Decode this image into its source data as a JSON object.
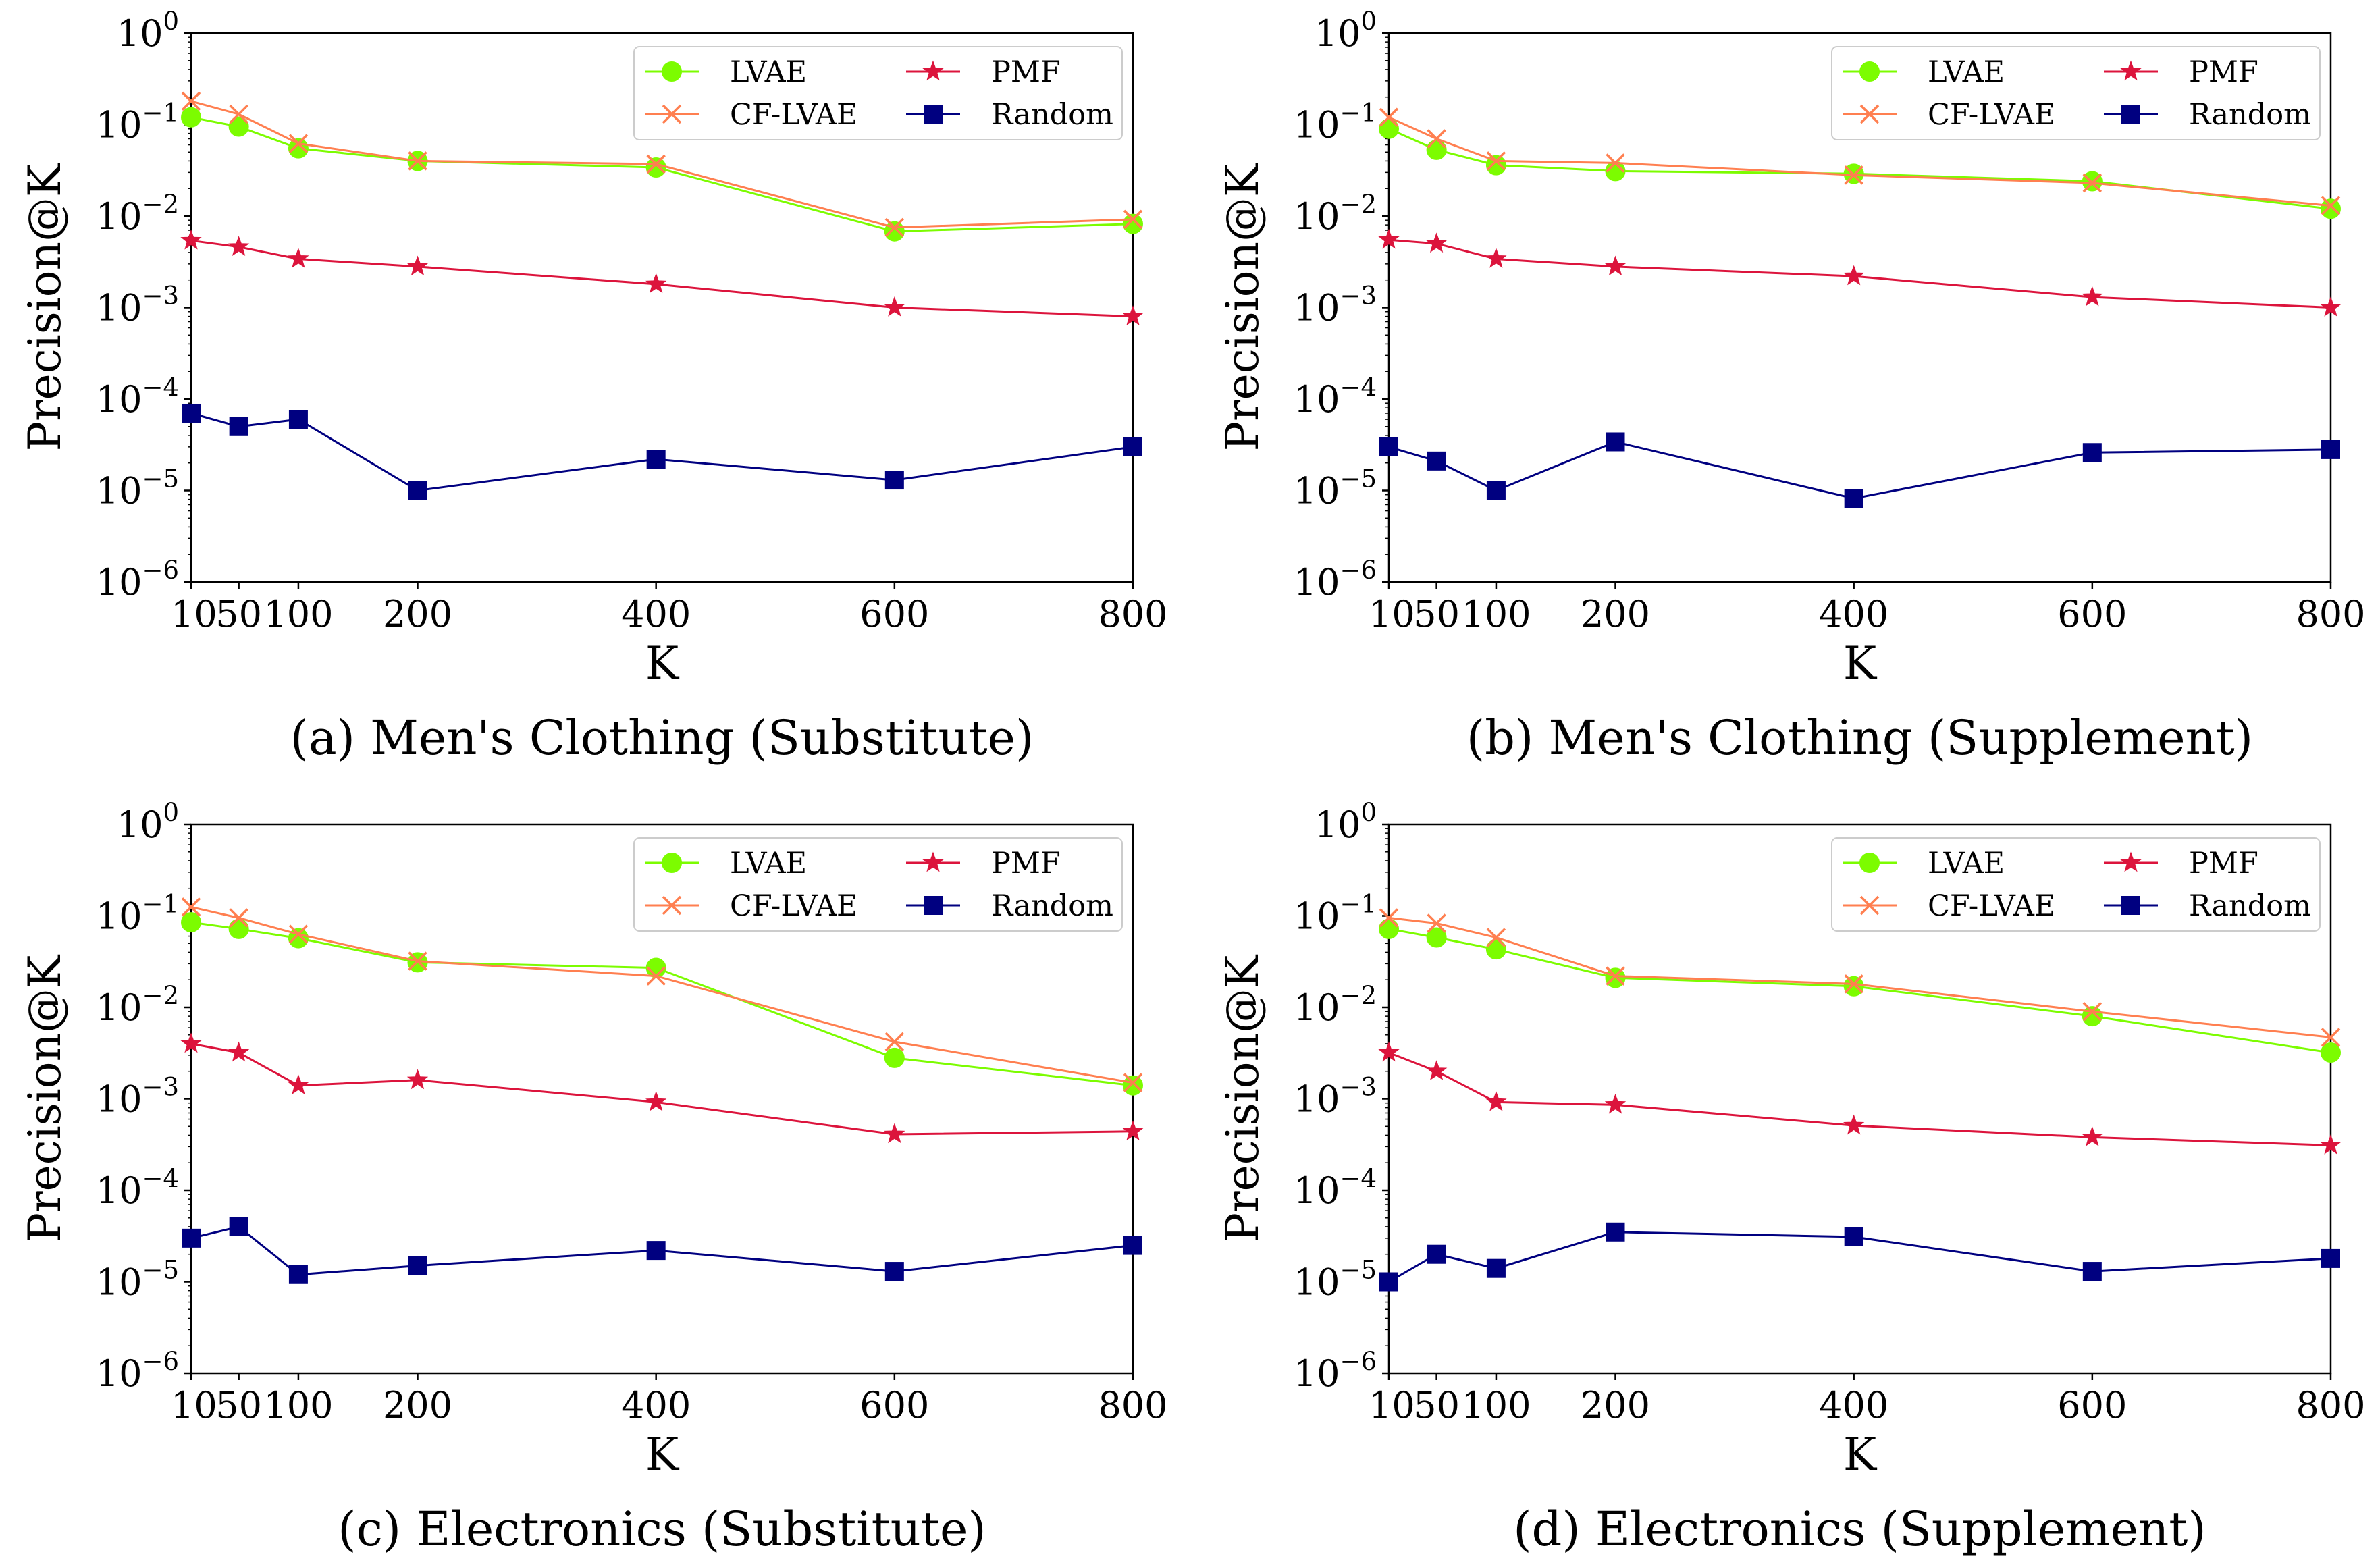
{
  "figure": {
    "colors": {
      "LVAE": "#7cfc00",
      "CF-LVAE": "#ff7f50",
      "PMF": "#dc143c",
      "Random": "#000080"
    },
    "legend_placement": "top-right",
    "y_scale": "log",
    "ylim": [
      1e-06,
      1
    ],
    "xlim": [
      10,
      800
    ],
    "x_ticks": [
      10,
      50,
      100,
      200,
      400,
      600,
      800
    ],
    "y_tick_labels": [
      {
        "base": "10",
        "exp": "0"
      },
      {
        "base": "10",
        "exp": "−1"
      },
      {
        "base": "10",
        "exp": "−2"
      },
      {
        "base": "10",
        "exp": "−3"
      },
      {
        "base": "10",
        "exp": "−4"
      },
      {
        "base": "10",
        "exp": "−5"
      },
      {
        "base": "10",
        "exp": "−6"
      }
    ],
    "markers": {
      "LVAE": "circle",
      "CF-LVAE": "x",
      "PMF": "star",
      "Random": "square"
    }
  },
  "chart_data": [
    {
      "type": "line",
      "caption": "(a) Men's Clothing (Substitute)",
      "xlabel": "K",
      "ylabel": "Precision@K",
      "x": [
        10,
        50,
        100,
        200,
        400,
        600,
        800
      ],
      "series": [
        {
          "name": "LVAE",
          "values": [
            0.12,
            0.095,
            0.055,
            0.04,
            0.034,
            0.0068,
            0.0082
          ]
        },
        {
          "name": "CF-LVAE",
          "values": [
            0.18,
            0.13,
            0.062,
            0.04,
            0.037,
            0.0075,
            0.0092
          ]
        },
        {
          "name": "PMF",
          "values": [
            0.0054,
            0.0046,
            0.0034,
            0.0028,
            0.0018,
            0.001,
            0.0008
          ]
        },
        {
          "name": "Random",
          "values": [
            7e-05,
            5e-05,
            6e-05,
            1e-05,
            2.2e-05,
            1.3e-05,
            3e-05
          ]
        }
      ]
    },
    {
      "type": "line",
      "caption": "(b) Men's Clothing (Supplement)",
      "xlabel": "K",
      "ylabel": "Precision@K",
      "x": [
        10,
        50,
        100,
        200,
        400,
        600,
        800
      ],
      "series": [
        {
          "name": "LVAE",
          "values": [
            0.09,
            0.053,
            0.036,
            0.031,
            0.029,
            0.024,
            0.012
          ]
        },
        {
          "name": "CF-LVAE",
          "values": [
            0.12,
            0.07,
            0.04,
            0.038,
            0.028,
            0.023,
            0.013
          ]
        },
        {
          "name": "PMF",
          "values": [
            0.0055,
            0.005,
            0.0034,
            0.0028,
            0.0022,
            0.0013,
            0.001
          ]
        },
        {
          "name": "Random",
          "values": [
            3e-05,
            2.1e-05,
            1e-05,
            3.4e-05,
            8.2e-06,
            2.6e-05,
            2.8e-05
          ]
        }
      ]
    },
    {
      "type": "line",
      "caption": "(c) Electronics (Substitute)",
      "xlabel": "K",
      "ylabel": "Precision@K",
      "x": [
        10,
        50,
        100,
        200,
        400,
        600,
        800
      ],
      "series": [
        {
          "name": "LVAE",
          "values": [
            0.085,
            0.072,
            0.057,
            0.031,
            0.027,
            0.0028,
            0.0014
          ]
        },
        {
          "name": "CF-LVAE",
          "values": [
            0.125,
            0.095,
            0.063,
            0.032,
            0.022,
            0.0042,
            0.0015
          ]
        },
        {
          "name": "PMF",
          "values": [
            0.004,
            0.0032,
            0.0014,
            0.0016,
            0.00092,
            0.00041,
            0.00044
          ]
        },
        {
          "name": "Random",
          "values": [
            3e-05,
            4e-05,
            1.2e-05,
            1.5e-05,
            2.2e-05,
            1.3e-05,
            2.5e-05
          ]
        }
      ]
    },
    {
      "type": "line",
      "caption": "(d) Electronics (Supplement)",
      "xlabel": "K",
      "ylabel": "Precision@K",
      "x": [
        10,
        50,
        100,
        200,
        400,
        600,
        800
      ],
      "series": [
        {
          "name": "LVAE",
          "values": [
            0.072,
            0.058,
            0.043,
            0.021,
            0.017,
            0.008,
            0.0032
          ]
        },
        {
          "name": "CF-LVAE",
          "values": [
            0.095,
            0.083,
            0.058,
            0.022,
            0.018,
            0.009,
            0.0047
          ]
        },
        {
          "name": "PMF",
          "values": [
            0.0032,
            0.002,
            0.00092,
            0.00086,
            0.00051,
            0.00038,
            0.00031
          ]
        },
        {
          "name": "Random",
          "values": [
            1e-05,
            2e-05,
            1.4e-05,
            3.5e-05,
            3.1e-05,
            1.3e-05,
            1.8e-05
          ]
        }
      ]
    }
  ]
}
